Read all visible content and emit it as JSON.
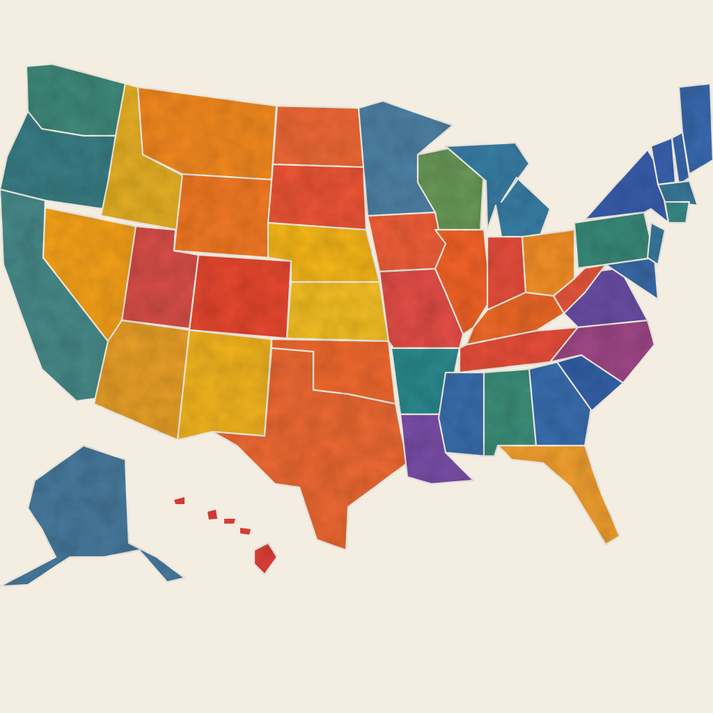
{
  "background_color": "#f4ede1",
  "border_color": "#fbf6ec",
  "states": {
    "WA": "#3f8a7a",
    "OR": "#3a7f86",
    "CA": "#4a8a8a",
    "NV": "#f6a21e",
    "ID": "#e6b028",
    "MT": "#f48a24",
    "WY": "#f47a26",
    "UT": "#d8504a",
    "CO": "#e84a30",
    "AZ": "#e9a02a",
    "NM": "#f3b523",
    "ND": "#f06a38",
    "SD": "#ee5638",
    "NE": "#f6b71e",
    "KS": "#f6c126",
    "OK": "#f26a30",
    "TX": "#ee6a36",
    "MN": "#4f82a6",
    "IA": "#f2603a",
    "MO": "#e5504a",
    "AR": "#2f8a8f",
    "LA": "#7a4fa8",
    "WI": "#6a9a5a",
    "MI": "#3a7fa6",
    "IL": "#f4652a",
    "IN": "#e8503c",
    "OH": "#f6922a",
    "KY": "#f06a2c",
    "TN": "#e9503a",
    "MS": "#3a6fae",
    "AL": "#3c8f7a",
    "GA": "#3a6fb0",
    "SC": "#3562a8",
    "NC": "#a04a88",
    "VA": "#6a4fa6",
    "WV": "#e8563c",
    "PA": "#3a8a7a",
    "NY": "#3a5fae",
    "MD": "#3a6aa8",
    "NJ": "#3a7aa0",
    "ME": "#3a6ab0",
    "NH": "#3a6ab0",
    "VT": "#3a62ae",
    "MA": "#3a7a9a",
    "CT": "#3a8a8a",
    "FL": "#f2a030",
    "AK": "#4a7a9e",
    "HI": "#e2433a"
  }
}
